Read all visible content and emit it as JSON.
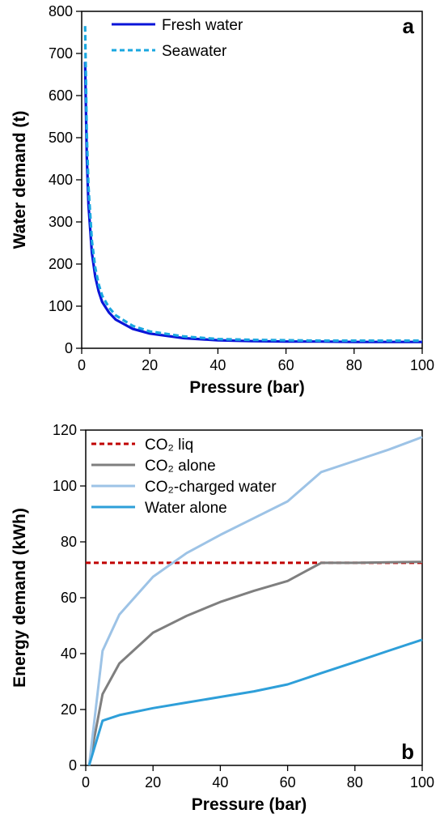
{
  "chart_data": [
    {
      "type": "line",
      "panel_label": "a",
      "xlabel": "Pressure (bar)",
      "ylabel": "Water demand (t)",
      "xlim": [
        0,
        100
      ],
      "ylim": [
        0,
        800
      ],
      "xticks": [
        0,
        20,
        40,
        60,
        80,
        100
      ],
      "yticks": [
        0,
        100,
        200,
        300,
        400,
        500,
        600,
        700,
        800
      ],
      "legend_position": "top-left",
      "grid": false,
      "series": [
        {
          "name": "Fresh water",
          "color": "#0a14d8",
          "dash": "solid",
          "x": [
            1,
            1.5,
            2,
            3,
            4,
            5,
            6,
            8,
            10,
            15,
            20,
            30,
            40,
            50,
            60,
            70,
            80,
            90,
            100
          ],
          "y": [
            680,
            455,
            340,
            227,
            170,
            135,
            110,
            85,
            68,
            46,
            35,
            24,
            19,
            17,
            16,
            16,
            15,
            15,
            15
          ]
        },
        {
          "name": "Seawater",
          "color": "#1aa7e0",
          "dash": "dashed",
          "x": [
            1,
            1.5,
            2,
            3,
            4,
            5,
            6,
            8,
            10,
            15,
            20,
            30,
            40,
            50,
            60,
            70,
            80,
            90,
            100
          ],
          "y": [
            765,
            510,
            383,
            255,
            191,
            152,
            125,
            97,
            78,
            53,
            40,
            28,
            22,
            20,
            19,
            18,
            18,
            18,
            18
          ]
        }
      ]
    },
    {
      "type": "line",
      "panel_label": "b",
      "xlabel": "Pressure (bar)",
      "ylabel": "Energy demand (kWh)",
      "xlim": [
        0,
        100
      ],
      "ylim": [
        0,
        120
      ],
      "xticks": [
        0,
        20,
        40,
        60,
        80,
        100
      ],
      "yticks": [
        0,
        20,
        40,
        60,
        80,
        100,
        120
      ],
      "legend_position": "top-left",
      "grid": false,
      "series": [
        {
          "name": "CO₂ liq",
          "color": "#c00000",
          "dash": "dashed",
          "x": [
            0,
            100
          ],
          "y": [
            72.5,
            72.5
          ]
        },
        {
          "name": "CO₂ alone",
          "color": "#7f7f7f",
          "dash": "solid",
          "x": [
            1,
            5,
            10,
            20,
            30,
            40,
            50,
            60,
            70,
            80,
            90,
            100
          ],
          "y": [
            0,
            25.5,
            36.5,
            47.5,
            53.5,
            58.5,
            62.5,
            66,
            72.5,
            72.5,
            72.7,
            72.8
          ]
        },
        {
          "name": "CO₂-charged water",
          "color": "#9dc3e6",
          "dash": "solid",
          "x": [
            1,
            5,
            10,
            20,
            30,
            40,
            50,
            60,
            70,
            80,
            90,
            100
          ],
          "y": [
            0,
            41,
            54,
            67.5,
            76,
            82.5,
            88.5,
            94.5,
            105,
            109,
            113,
            117.5
          ]
        },
        {
          "name": "Water alone",
          "color": "#2e9fd9",
          "dash": "solid",
          "x": [
            1,
            5,
            10,
            20,
            30,
            40,
            50,
            60,
            70,
            80,
            90,
            100
          ],
          "y": [
            0,
            16,
            18,
            20.5,
            22.5,
            24.5,
            26.5,
            29,
            33,
            37,
            41,
            45
          ]
        }
      ]
    }
  ]
}
